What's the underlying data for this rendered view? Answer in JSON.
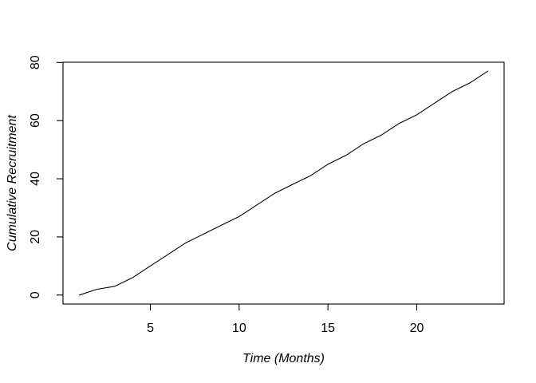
{
  "figure": {
    "background": "#ffffff",
    "text_color": "#000000"
  },
  "chart_data": {
    "type": "line",
    "title": "",
    "xlabel": "Time (Months)",
    "ylabel": "Cumulative Recruitment",
    "x": [
      1,
      2,
      3,
      4,
      5,
      6,
      7,
      8,
      9,
      10,
      11,
      12,
      13,
      14,
      15,
      16,
      17,
      18,
      19,
      20,
      21,
      22,
      23,
      24
    ],
    "series": [
      {
        "name": "Cumulative Recruitment",
        "values": [
          0,
          2,
          3,
          6,
          10,
          14,
          18,
          21,
          24,
          27,
          31,
          35,
          38,
          41,
          45,
          48,
          52,
          55,
          59,
          62,
          66,
          70,
          73,
          77
        ]
      }
    ],
    "x_ticks": [
      5,
      10,
      15,
      20
    ],
    "y_ticks": [
      0,
      20,
      40,
      60,
      80
    ],
    "xlim": [
      0.08,
      24.92
    ],
    "ylim": [
      -3.08,
      80.08
    ],
    "grid": false,
    "legend_position": "none",
    "line_color": "#000000",
    "axis_color": "#000000",
    "box_around_plot": true
  }
}
